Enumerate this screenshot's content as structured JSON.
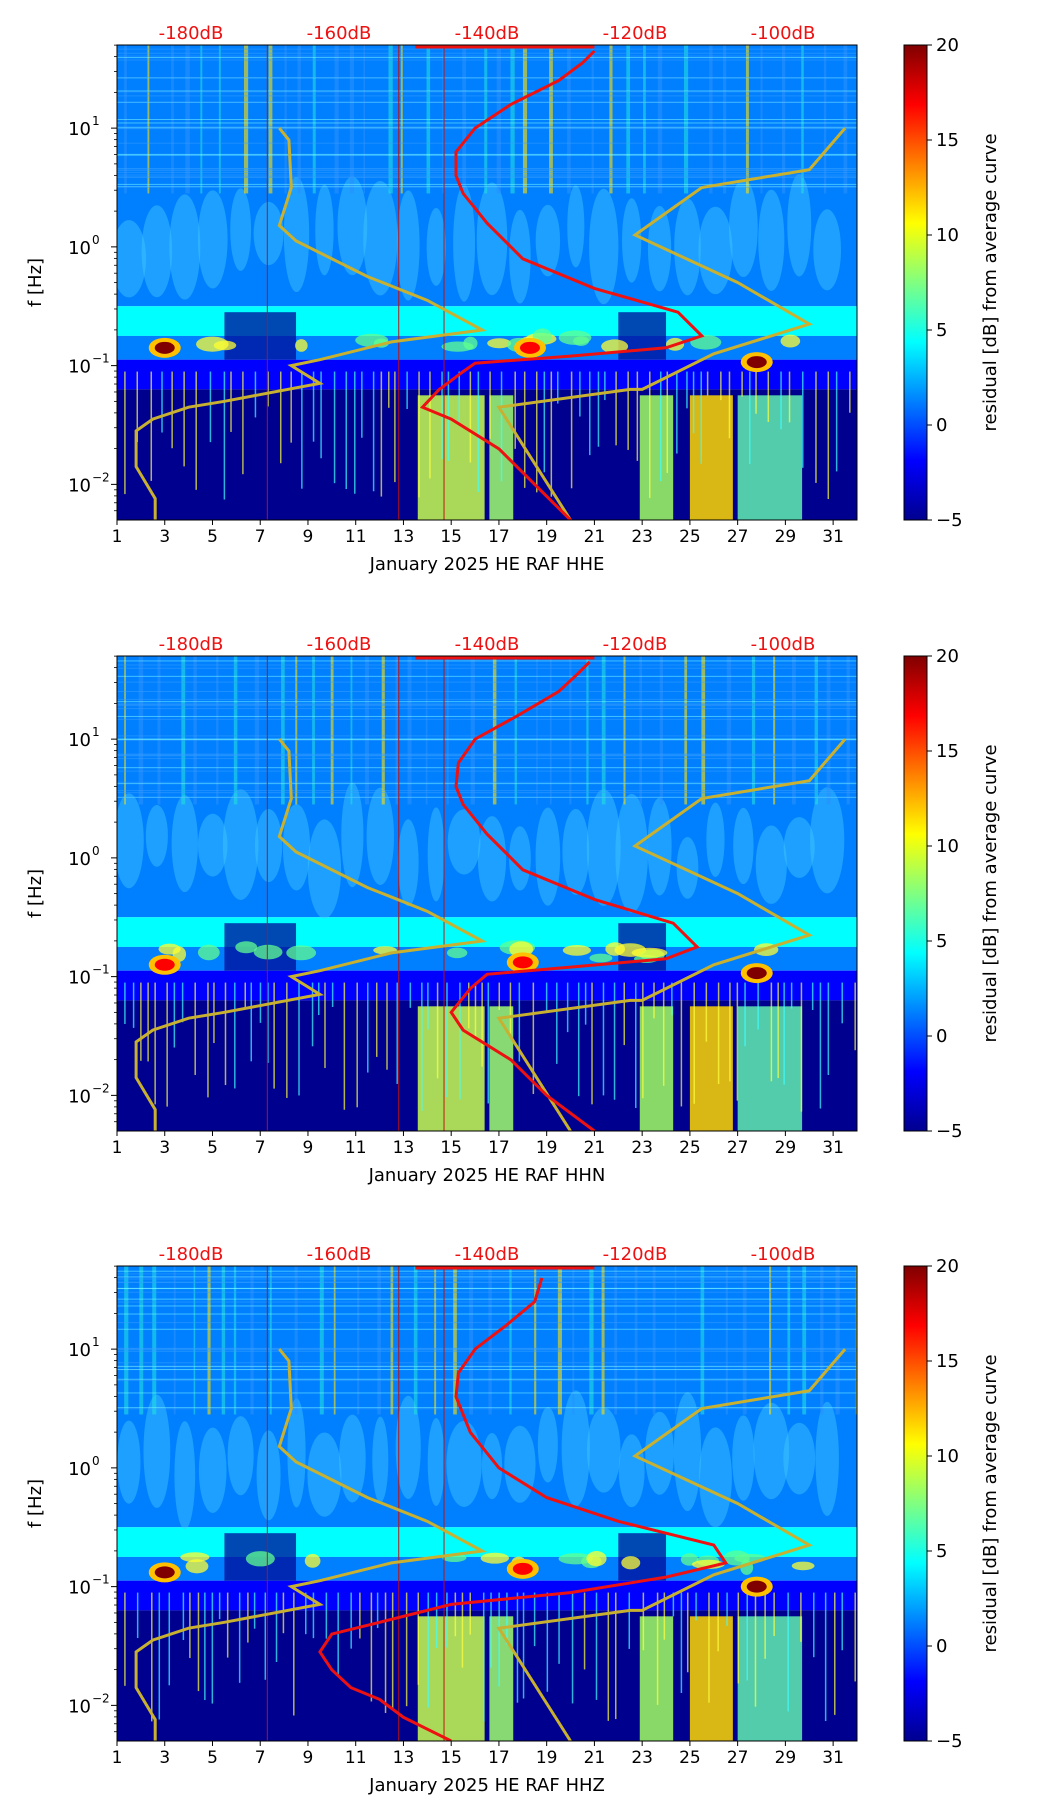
{
  "figure": {
    "shared": {
      "xticks": [
        "1",
        "3",
        "5",
        "7",
        "9",
        "11",
        "13",
        "15",
        "17",
        "19",
        "21",
        "23",
        "25",
        "27",
        "29",
        "31"
      ],
      "xtick_values": [
        1,
        3,
        5,
        7,
        9,
        11,
        13,
        15,
        17,
        19,
        21,
        23,
        25,
        27,
        29,
        31
      ],
      "xlim": [
        1,
        32
      ],
      "ylabel": "f [Hz]",
      "ylim_log10": [
        -2.3,
        1.7
      ],
      "yticks": [
        {
          "base": "10",
          "exp": "1",
          "log10": 1
        },
        {
          "base": "10",
          "exp": "0",
          "log10": 0
        },
        {
          "base": "10",
          "exp": "−1",
          "log10": -1
        },
        {
          "base": "10",
          "exp": "−2",
          "log10": -2
        }
      ],
      "db_labels": [
        {
          "label": "-180dB",
          "x": 4.1
        },
        {
          "label": "-160dB",
          "x": 10.3
        },
        {
          "label": "-140dB",
          "x": 16.5
        },
        {
          "label": "-120dB",
          "x": 22.7
        },
        {
          "label": "-100dB",
          "x": 28.9
        }
      ],
      "colorbar": {
        "label": "residual [dB] from average curve",
        "ticks": [
          "20",
          "15",
          "10",
          "5",
          "0",
          "−5"
        ],
        "tick_values": [
          20,
          15,
          10,
          5,
          0,
          -5
        ],
        "range": [
          -5,
          20
        ],
        "colors": [
          "#00008f",
          "#0000ff",
          "#0080ff",
          "#00ffff",
          "#80ff80",
          "#ffff00",
          "#ff8000",
          "#ff0000",
          "#800000"
        ]
      },
      "line_colors": {
        "model": "#c8b030",
        "average": "#ee1111",
        "db_label": "#ee1111"
      }
    },
    "chart_data": [
      {
        "type": "heatmap",
        "title": "",
        "xlabel": "January 2025 HE RAF  HHE",
        "ylabel": "f [Hz]",
        "xlim": [
          1,
          32
        ],
        "ylim": [
          0.005,
          50
        ],
        "model_curve": {
          "name": "noise model (yellow)",
          "points": [
            [
              2.6,
              -2.3
            ],
            [
              2.6,
              -2.12
            ],
            [
              1.8,
              -1.85
            ],
            [
              1.8,
              -1.55
            ],
            [
              2.5,
              -1.45
            ],
            [
              4.0,
              -1.35
            ],
            [
              5.5,
              -1.3
            ],
            [
              9.5,
              -1.15
            ],
            [
              8.3,
              -1.0
            ],
            [
              9.5,
              -0.95
            ],
            [
              12.5,
              -0.8
            ],
            [
              16.3,
              -0.7
            ],
            [
              14.0,
              -0.45
            ],
            [
              11.5,
              -0.25
            ],
            [
              8.5,
              0.05
            ],
            [
              7.8,
              0.18
            ],
            [
              8.3,
              0.5
            ],
            [
              8.2,
              0.9
            ],
            [
              7.8,
              1.0
            ]
          ],
          "points_right": [
            [
              20.0,
              -2.3
            ],
            [
              17.0,
              -1.35
            ],
            [
              22.5,
              -1.2
            ],
            [
              23.0,
              -1.2
            ],
            [
              26.0,
              -0.9
            ],
            [
              30.0,
              -0.65
            ],
            [
              27.0,
              -0.3
            ],
            [
              22.7,
              0.1
            ],
            [
              25.5,
              0.5
            ],
            [
              30.0,
              0.65
            ],
            [
              31.5,
              1.0
            ]
          ]
        },
        "average_curve": {
          "name": "average PSD (red)",
          "points": [
            [
              20.0,
              -2.3
            ],
            [
              18.5,
              -2.0
            ],
            [
              17.0,
              -1.7
            ],
            [
              15.0,
              -1.45
            ],
            [
              13.8,
              -1.35
            ],
            [
              14.5,
              -1.2
            ],
            [
              15.5,
              -1.05
            ],
            [
              16.0,
              -0.98
            ],
            [
              20.0,
              -0.92
            ],
            [
              24.0,
              -0.85
            ],
            [
              25.5,
              -0.75
            ],
            [
              24.5,
              -0.55
            ],
            [
              21.0,
              -0.35
            ],
            [
              18.0,
              -0.1
            ],
            [
              16.5,
              0.2
            ],
            [
              15.5,
              0.45
            ],
            [
              15.2,
              0.6
            ],
            [
              15.2,
              0.8
            ],
            [
              16.0,
              1.0
            ],
            [
              17.5,
              1.2
            ],
            [
              19.5,
              1.4
            ],
            [
              20.5,
              1.55
            ],
            [
              21.0,
              1.65
            ]
          ]
        },
        "peaks": [
          {
            "day": 3,
            "f_log10": -0.85,
            "residual_db": 20
          },
          {
            "day": 27.8,
            "f_log10": -0.97,
            "residual_db": 20
          },
          {
            "day": 18.3,
            "f_log10": -0.85,
            "residual_db": 16
          }
        ]
      },
      {
        "type": "heatmap",
        "title": "",
        "xlabel": "January 2025 HE RAF  HHN",
        "ylabel": "f [Hz]",
        "xlim": [
          1,
          32
        ],
        "ylim": [
          0.005,
          50
        ],
        "model_curve": {
          "name": "noise model (yellow)",
          "points": [
            [
              2.6,
              -2.3
            ],
            [
              2.6,
              -2.12
            ],
            [
              1.8,
              -1.85
            ],
            [
              1.8,
              -1.55
            ],
            [
              2.5,
              -1.45
            ],
            [
              4.0,
              -1.35
            ],
            [
              5.5,
              -1.3
            ],
            [
              9.5,
              -1.15
            ],
            [
              8.3,
              -1.0
            ],
            [
              9.5,
              -0.95
            ],
            [
              12.5,
              -0.8
            ],
            [
              16.3,
              -0.7
            ],
            [
              14.0,
              -0.45
            ],
            [
              11.5,
              -0.25
            ],
            [
              8.5,
              0.05
            ],
            [
              7.8,
              0.18
            ],
            [
              8.3,
              0.5
            ],
            [
              8.2,
              0.9
            ],
            [
              7.8,
              1.0
            ]
          ],
          "points_right": [
            [
              20.0,
              -2.3
            ],
            [
              17.0,
              -1.35
            ],
            [
              22.5,
              -1.2
            ],
            [
              23.0,
              -1.2
            ],
            [
              26.0,
              -0.9
            ],
            [
              30.0,
              -0.65
            ],
            [
              27.0,
              -0.3
            ],
            [
              22.7,
              0.1
            ],
            [
              25.5,
              0.5
            ],
            [
              30.0,
              0.65
            ],
            [
              31.5,
              1.0
            ]
          ]
        },
        "average_curve": {
          "name": "average PSD (red)",
          "points": [
            [
              21.0,
              -2.3
            ],
            [
              19.0,
              -2.0
            ],
            [
              17.5,
              -1.7
            ],
            [
              15.5,
              -1.45
            ],
            [
              15.0,
              -1.3
            ],
            [
              15.8,
              -1.1
            ],
            [
              16.5,
              -0.98
            ],
            [
              20.0,
              -0.92
            ],
            [
              24.0,
              -0.85
            ],
            [
              25.3,
              -0.75
            ],
            [
              24.3,
              -0.55
            ],
            [
              21.0,
              -0.35
            ],
            [
              18.0,
              -0.1
            ],
            [
              16.5,
              0.2
            ],
            [
              15.5,
              0.45
            ],
            [
              15.2,
              0.6
            ],
            [
              15.3,
              0.8
            ],
            [
              16.0,
              1.0
            ],
            [
              17.8,
              1.2
            ],
            [
              19.5,
              1.4
            ],
            [
              20.3,
              1.55
            ],
            [
              20.8,
              1.65
            ]
          ]
        },
        "peaks": [
          {
            "day": 3,
            "f_log10": -0.9,
            "residual_db": 18
          },
          {
            "day": 27.8,
            "f_log10": -0.97,
            "residual_db": 20
          },
          {
            "day": 18.0,
            "f_log10": -0.88,
            "residual_db": 16
          }
        ]
      },
      {
        "type": "heatmap",
        "title": "",
        "xlabel": "January 2025 HE RAF  HHZ",
        "ylabel": "f [Hz]",
        "xlim": [
          1,
          32
        ],
        "ylim": [
          0.005,
          50
        ],
        "model_curve": {
          "name": "noise model (yellow)",
          "points": [
            [
              2.6,
              -2.3
            ],
            [
              2.6,
              -2.12
            ],
            [
              1.8,
              -1.85
            ],
            [
              1.8,
              -1.55
            ],
            [
              2.5,
              -1.45
            ],
            [
              4.0,
              -1.35
            ],
            [
              5.5,
              -1.3
            ],
            [
              9.5,
              -1.15
            ],
            [
              8.3,
              -1.0
            ],
            [
              9.5,
              -0.95
            ],
            [
              12.5,
              -0.8
            ],
            [
              16.3,
              -0.7
            ],
            [
              14.0,
              -0.45
            ],
            [
              11.5,
              -0.25
            ],
            [
              8.5,
              0.05
            ],
            [
              7.8,
              0.18
            ],
            [
              8.3,
              0.5
            ],
            [
              8.2,
              0.9
            ],
            [
              7.8,
              1.0
            ]
          ],
          "points_right": [
            [
              20.0,
              -2.3
            ],
            [
              17.0,
              -1.35
            ],
            [
              22.5,
              -1.2
            ],
            [
              23.0,
              -1.2
            ],
            [
              26.0,
              -0.9
            ],
            [
              30.0,
              -0.65
            ],
            [
              27.0,
              -0.3
            ],
            [
              22.7,
              0.1
            ],
            [
              25.5,
              0.5
            ],
            [
              30.0,
              0.65
            ],
            [
              31.5,
              1.0
            ]
          ]
        },
        "average_curve": {
          "name": "average PSD (red)",
          "points": [
            [
              15.0,
              -2.3
            ],
            [
              13.0,
              -2.1
            ],
            [
              12.0,
              -1.95
            ],
            [
              10.8,
              -1.85
            ],
            [
              10.0,
              -1.7
            ],
            [
              9.5,
              -1.55
            ],
            [
              10.0,
              -1.4
            ],
            [
              12.0,
              -1.3
            ],
            [
              15.0,
              -1.15
            ],
            [
              20.0,
              -1.05
            ],
            [
              24.0,
              -0.92
            ],
            [
              26.5,
              -0.8
            ],
            [
              26.0,
              -0.65
            ],
            [
              22.0,
              -0.45
            ],
            [
              19.0,
              -0.25
            ],
            [
              17.0,
              0.0
            ],
            [
              15.8,
              0.3
            ],
            [
              15.2,
              0.6
            ],
            [
              15.3,
              0.8
            ],
            [
              16.0,
              1.0
            ],
            [
              17.3,
              1.2
            ],
            [
              18.5,
              1.4
            ],
            [
              18.8,
              1.6
            ]
          ]
        },
        "peaks": [
          {
            "day": 3,
            "f_log10": -0.88,
            "residual_db": 20
          },
          {
            "day": 27.8,
            "f_log10": -1.0,
            "residual_db": 20
          },
          {
            "day": 18.0,
            "f_log10": -0.85,
            "residual_db": 16
          }
        ]
      }
    ]
  }
}
